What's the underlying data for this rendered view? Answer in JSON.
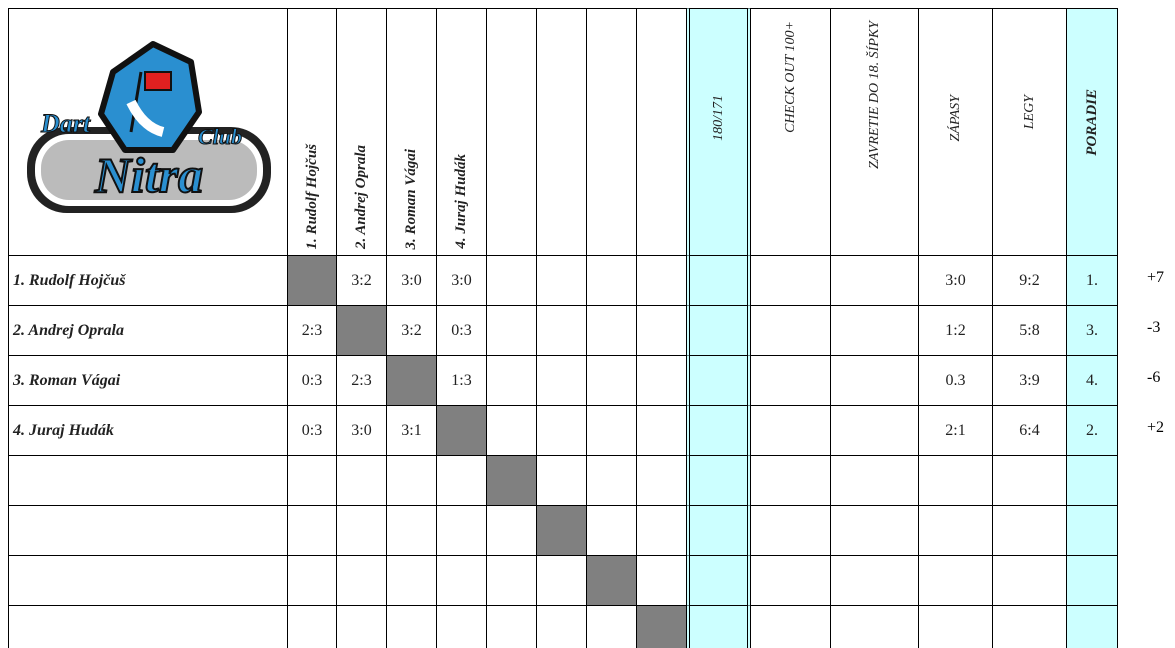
{
  "header": {
    "logo": {
      "dart": "Dart",
      "club": "Club",
      "nitra": "Nitra"
    },
    "columns": [
      "1. Rudolf Hojčuš",
      "2. Andrej Oprala",
      "3. Roman Vágai",
      "4. Juraj Hudák",
      null,
      null,
      null,
      null,
      "180/171",
      "CHECK OUT 100+",
      "ZAVRETIE DO 18. ŠÍPKY",
      "ZÁPASY",
      "LEGY",
      "PORADIE"
    ]
  },
  "rows": [
    {
      "name": "1. Rudolf Hojčuš",
      "cells": [
        null,
        "3:2",
        "3:0",
        "3:0",
        null,
        null,
        null,
        null,
        null,
        null,
        null,
        "3:0",
        "9:2",
        "1."
      ],
      "diff": "+7"
    },
    {
      "name": "2. Andrej Oprala",
      "cells": [
        "2:3",
        null,
        "3:2",
        "0:3",
        null,
        null,
        null,
        null,
        null,
        null,
        null,
        "1:2",
        "5:8",
        "3."
      ],
      "diff": "-3"
    },
    {
      "name": "3. Roman Vágai",
      "cells": [
        "0:3",
        "2:3",
        null,
        "1:3",
        null,
        null,
        null,
        null,
        null,
        null,
        null,
        "0.3",
        "3:9",
        "4."
      ],
      "diff": "-6"
    },
    {
      "name": "4. Juraj Hudák",
      "cells": [
        "0:3",
        "3:0",
        "3:1",
        null,
        null,
        null,
        null,
        null,
        null,
        null,
        null,
        "2:1",
        "6:4",
        "2."
      ],
      "diff": "+2"
    },
    {
      "name": null,
      "cells": [
        null,
        null,
        null,
        null,
        null,
        null,
        null,
        null,
        null,
        null,
        null,
        null,
        null,
        null
      ],
      "diff": null
    },
    {
      "name": null,
      "cells": [
        null,
        null,
        null,
        null,
        null,
        null,
        null,
        null,
        null,
        null,
        null,
        null,
        null,
        null
      ],
      "diff": null
    },
    {
      "name": null,
      "cells": [
        null,
        null,
        null,
        null,
        null,
        null,
        null,
        null,
        null,
        null,
        null,
        null,
        null,
        null
      ],
      "diff": null
    },
    {
      "name": null,
      "cells": [
        null,
        null,
        null,
        null,
        null,
        null,
        null,
        null,
        null,
        null,
        null,
        null,
        null,
        null
      ],
      "diff": null
    }
  ]
}
